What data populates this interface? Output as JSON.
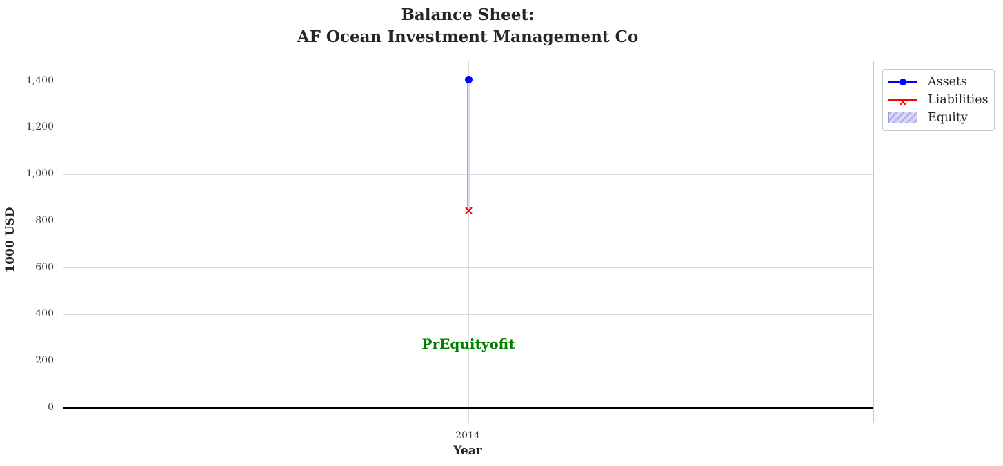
{
  "chart_data": {
    "type": "line",
    "title": "Balance Sheet:\nAF Ocean Investment Management Co",
    "xlabel": "Year",
    "ylabel": "1000 USD",
    "categories": [
      "2014"
    ],
    "series": [
      {
        "name": "Assets",
        "type": "line",
        "marker": "circle",
        "color": "#0000ff",
        "values": [
          1408
        ]
      },
      {
        "name": "Liabilities",
        "type": "line",
        "marker": "x",
        "color": "#ff0000",
        "values": [
          851
        ]
      },
      {
        "name": "Equity",
        "type": "bar",
        "hatch": "//",
        "facecolor": "#dcdcf6",
        "edgecolor": "#a3a3e3",
        "values": [
          557
        ],
        "bar_bottom": "Liabilities"
      }
    ],
    "annotation": {
      "text": "PrEquityofit",
      "color": "#008000",
      "x": "2014",
      "y": 275
    },
    "ylim": [
      -63,
      1485
    ],
    "yticks": [
      {
        "value": 0,
        "label": "0"
      },
      {
        "value": 200,
        "label": "200"
      },
      {
        "value": 400,
        "label": "400"
      },
      {
        "value": 600,
        "label": "600"
      },
      {
        "value": 800,
        "label": "800"
      },
      {
        "value": 1000,
        "label": "1,000"
      },
      {
        "value": 1200,
        "label": "1,200"
      },
      {
        "value": 1400,
        "label": "1,400"
      }
    ],
    "zero_line": {
      "color": "#000000",
      "value": 0
    },
    "grid": true,
    "legend_position": "outside-top-right"
  }
}
